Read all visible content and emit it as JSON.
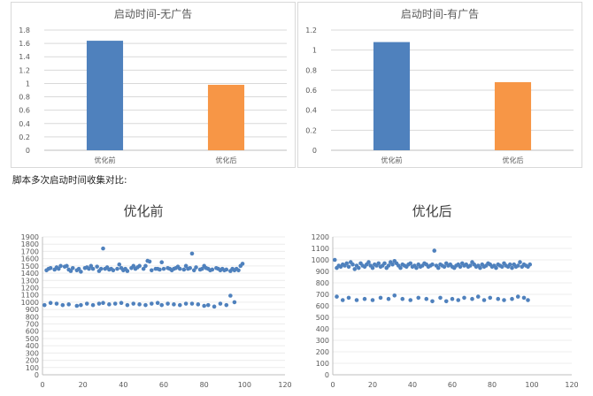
{
  "caption": "脚本多次启动时间收集对比:",
  "chart_data": [
    {
      "type": "bar",
      "title": "启动时间-无广告",
      "categories": [
        "优化前",
        "优化后"
      ],
      "values": [
        1.64,
        0.98
      ],
      "colors": [
        "#4f81bd",
        "#f79646"
      ],
      "ylim": [
        0,
        1.8
      ],
      "yticks": [
        "0",
        "0.2",
        "0.4",
        "0.6",
        "0.8",
        "1",
        "1.2",
        "1.4",
        "1.6",
        "1.8"
      ],
      "grid": true
    },
    {
      "type": "bar",
      "title": "启动时间-有广告",
      "categories": [
        "优化前",
        "优化后"
      ],
      "values": [
        1.08,
        0.68
      ],
      "colors": [
        "#4f81bd",
        "#f79646"
      ],
      "ylim": [
        0,
        1.2
      ],
      "yticks": [
        "0",
        "0.2",
        "0.4",
        "0.6",
        "0.8",
        "1",
        "1.2"
      ],
      "grid": true
    },
    {
      "type": "scatter",
      "title": "优化前",
      "color": "#4f81bd",
      "xlim": [
        0,
        120
      ],
      "ylim": [
        0,
        1900
      ],
      "xticks": [
        "0",
        "20",
        "40",
        "60",
        "80",
        "100",
        "120"
      ],
      "yticks": [
        "0",
        "100",
        "200",
        "300",
        "400",
        "500",
        "600",
        "700",
        "800",
        "900",
        "1000",
        "1100",
        "1200",
        "1300",
        "1400",
        "1500",
        "1600",
        "1700",
        "1800",
        "1900"
      ],
      "grid": true,
      "points": [
        [
          2,
          1440
        ],
        [
          3,
          1460
        ],
        [
          4,
          1470
        ],
        [
          6,
          1450
        ],
        [
          7,
          1480
        ],
        [
          8,
          1460
        ],
        [
          9,
          1500
        ],
        [
          11,
          1490
        ],
        [
          12,
          1500
        ],
        [
          13,
          1450
        ],
        [
          14,
          1430
        ],
        [
          15,
          1470
        ],
        [
          17,
          1440
        ],
        [
          18,
          1460
        ],
        [
          19,
          1420
        ],
        [
          21,
          1470
        ],
        [
          22,
          1480
        ],
        [
          23,
          1460
        ],
        [
          24,
          1500
        ],
        [
          25,
          1460
        ],
        [
          27,
          1490
        ],
        [
          28,
          1430
        ],
        [
          29,
          1460
        ],
        [
          30,
          1740
        ],
        [
          31,
          1460
        ],
        [
          32,
          1480
        ],
        [
          33,
          1450
        ],
        [
          34,
          1460
        ],
        [
          35,
          1440
        ],
        [
          37,
          1460
        ],
        [
          38,
          1520
        ],
        [
          39,
          1470
        ],
        [
          40,
          1440
        ],
        [
          41,
          1460
        ],
        [
          42,
          1430
        ],
        [
          44,
          1470
        ],
        [
          45,
          1500
        ],
        [
          46,
          1460
        ],
        [
          47,
          1480
        ],
        [
          48,
          1500
        ],
        [
          50,
          1460
        ],
        [
          51,
          1500
        ],
        [
          52,
          1570
        ],
        [
          53,
          1560
        ],
        [
          54,
          1440
        ],
        [
          56,
          1460
        ],
        [
          57,
          1460
        ],
        [
          58,
          1450
        ],
        [
          59,
          1550
        ],
        [
          60,
          1460
        ],
        [
          62,
          1470
        ],
        [
          63,
          1460
        ],
        [
          64,
          1440
        ],
        [
          65,
          1460
        ],
        [
          66,
          1470
        ],
        [
          67,
          1490
        ],
        [
          68,
          1460
        ],
        [
          70,
          1450
        ],
        [
          71,
          1500
        ],
        [
          72,
          1460
        ],
        [
          73,
          1470
        ],
        [
          74,
          1670
        ],
        [
          75,
          1440
        ],
        [
          76,
          1480
        ],
        [
          78,
          1450
        ],
        [
          79,
          1460
        ],
        [
          80,
          1500
        ],
        [
          81,
          1470
        ],
        [
          82,
          1460
        ],
        [
          83,
          1440
        ],
        [
          84,
          1450
        ],
        [
          86,
          1470
        ],
        [
          87,
          1460
        ],
        [
          88,
          1440
        ],
        [
          89,
          1460
        ],
        [
          90,
          1440
        ],
        [
          91,
          1450
        ],
        [
          93,
          1430
        ],
        [
          94,
          1460
        ],
        [
          95,
          1440
        ],
        [
          96,
          1460
        ],
        [
          97,
          1440
        ],
        [
          98,
          1500
        ],
        [
          99,
          1530
        ],
        [
          1,
          960
        ],
        [
          4,
          990
        ],
        [
          7,
          980
        ],
        [
          10,
          960
        ],
        [
          13,
          970
        ],
        [
          17,
          950
        ],
        [
          19,
          960
        ],
        [
          22,
          980
        ],
        [
          25,
          960
        ],
        [
          28,
          980
        ],
        [
          30,
          990
        ],
        [
          33,
          970
        ],
        [
          36,
          980
        ],
        [
          39,
          990
        ],
        [
          42,
          960
        ],
        [
          45,
          980
        ],
        [
          48,
          970
        ],
        [
          51,
          960
        ],
        [
          54,
          980
        ],
        [
          57,
          990
        ],
        [
          59,
          960
        ],
        [
          62,
          980
        ],
        [
          65,
          970
        ],
        [
          68,
          960
        ],
        [
          71,
          980
        ],
        [
          74,
          980
        ],
        [
          77,
          970
        ],
        [
          80,
          950
        ],
        [
          82,
          960
        ],
        [
          85,
          940
        ],
        [
          88,
          980
        ],
        [
          91,
          960
        ],
        [
          93,
          1090
        ],
        [
          95,
          1000
        ]
      ]
    },
    {
      "type": "scatter",
      "title": "优化后",
      "color": "#4f81bd",
      "xlim": [
        0,
        120
      ],
      "ylim": [
        0,
        1200
      ],
      "xticks": [
        "0",
        "20",
        "40",
        "60",
        "80",
        "100",
        "120"
      ],
      "yticks": [
        "0",
        "100",
        "200",
        "300",
        "400",
        "500",
        "600",
        "700",
        "800",
        "900",
        "1000",
        "1100",
        "1200"
      ],
      "grid": true,
      "points": [
        [
          1,
          1000
        ],
        [
          2,
          930
        ],
        [
          3,
          950
        ],
        [
          4,
          940
        ],
        [
          5,
          960
        ],
        [
          6,
          950
        ],
        [
          7,
          970
        ],
        [
          8,
          940
        ],
        [
          9,
          980
        ],
        [
          10,
          960
        ],
        [
          11,
          920
        ],
        [
          12,
          950
        ],
        [
          13,
          930
        ],
        [
          14,
          970
        ],
        [
          15,
          950
        ],
        [
          16,
          940
        ],
        [
          17,
          960
        ],
        [
          18,
          980
        ],
        [
          19,
          950
        ],
        [
          20,
          930
        ],
        [
          21,
          960
        ],
        [
          22,
          950
        ],
        [
          23,
          970
        ],
        [
          24,
          940
        ],
        [
          25,
          950
        ],
        [
          26,
          970
        ],
        [
          27,
          930
        ],
        [
          28,
          950
        ],
        [
          29,
          980
        ],
        [
          30,
          960
        ],
        [
          31,
          990
        ],
        [
          32,
          970
        ],
        [
          33,
          950
        ],
        [
          34,
          930
        ],
        [
          35,
          960
        ],
        [
          36,
          950
        ],
        [
          37,
          940
        ],
        [
          38,
          960
        ],
        [
          39,
          970
        ],
        [
          40,
          940
        ],
        [
          41,
          950
        ],
        [
          42,
          930
        ],
        [
          43,
          960
        ],
        [
          44,
          940
        ],
        [
          45,
          950
        ],
        [
          46,
          970
        ],
        [
          47,
          960
        ],
        [
          48,
          940
        ],
        [
          49,
          950
        ],
        [
          50,
          960
        ],
        [
          51,
          1080
        ],
        [
          52,
          950
        ],
        [
          53,
          930
        ],
        [
          54,
          960
        ],
        [
          55,
          950
        ],
        [
          56,
          940
        ],
        [
          57,
          970
        ],
        [
          58,
          950
        ],
        [
          59,
          960
        ],
        [
          60,
          940
        ],
        [
          61,
          930
        ],
        [
          62,
          950
        ],
        [
          63,
          960
        ],
        [
          64,
          940
        ],
        [
          65,
          970
        ],
        [
          66,
          950
        ],
        [
          67,
          960
        ],
        [
          68,
          940
        ],
        [
          69,
          950
        ],
        [
          70,
          980
        ],
        [
          71,
          960
        ],
        [
          72,
          940
        ],
        [
          73,
          950
        ],
        [
          74,
          930
        ],
        [
          75,
          960
        ],
        [
          76,
          940
        ],
        [
          77,
          950
        ],
        [
          78,
          970
        ],
        [
          79,
          960
        ],
        [
          80,
          940
        ],
        [
          81,
          950
        ],
        [
          82,
          930
        ],
        [
          83,
          960
        ],
        [
          84,
          950
        ],
        [
          85,
          940
        ],
        [
          86,
          970
        ],
        [
          87,
          950
        ],
        [
          88,
          940
        ],
        [
          89,
          960
        ],
        [
          90,
          930
        ],
        [
          91,
          960
        ],
        [
          92,
          940
        ],
        [
          93,
          950
        ],
        [
          94,
          980
        ],
        [
          95,
          940
        ],
        [
          96,
          960
        ],
        [
          97,
          950
        ],
        [
          98,
          940
        ],
        [
          99,
          960
        ],
        [
          2,
          680
        ],
        [
          5,
          650
        ],
        [
          8,
          670
        ],
        [
          12,
          650
        ],
        [
          16,
          660
        ],
        [
          20,
          650
        ],
        [
          24,
          670
        ],
        [
          28,
          660
        ],
        [
          31,
          690
        ],
        [
          35,
          660
        ],
        [
          39,
          650
        ],
        [
          43,
          670
        ],
        [
          47,
          660
        ],
        [
          50,
          640
        ],
        [
          54,
          670
        ],
        [
          57,
          640
        ],
        [
          60,
          660
        ],
        [
          63,
          650
        ],
        [
          66,
          670
        ],
        [
          70,
          660
        ],
        [
          73,
          680
        ],
        [
          76,
          650
        ],
        [
          79,
          670
        ],
        [
          83,
          660
        ],
        [
          86,
          650
        ],
        [
          90,
          660
        ],
        [
          93,
          680
        ],
        [
          96,
          670
        ],
        [
          98,
          650
        ]
      ]
    }
  ]
}
